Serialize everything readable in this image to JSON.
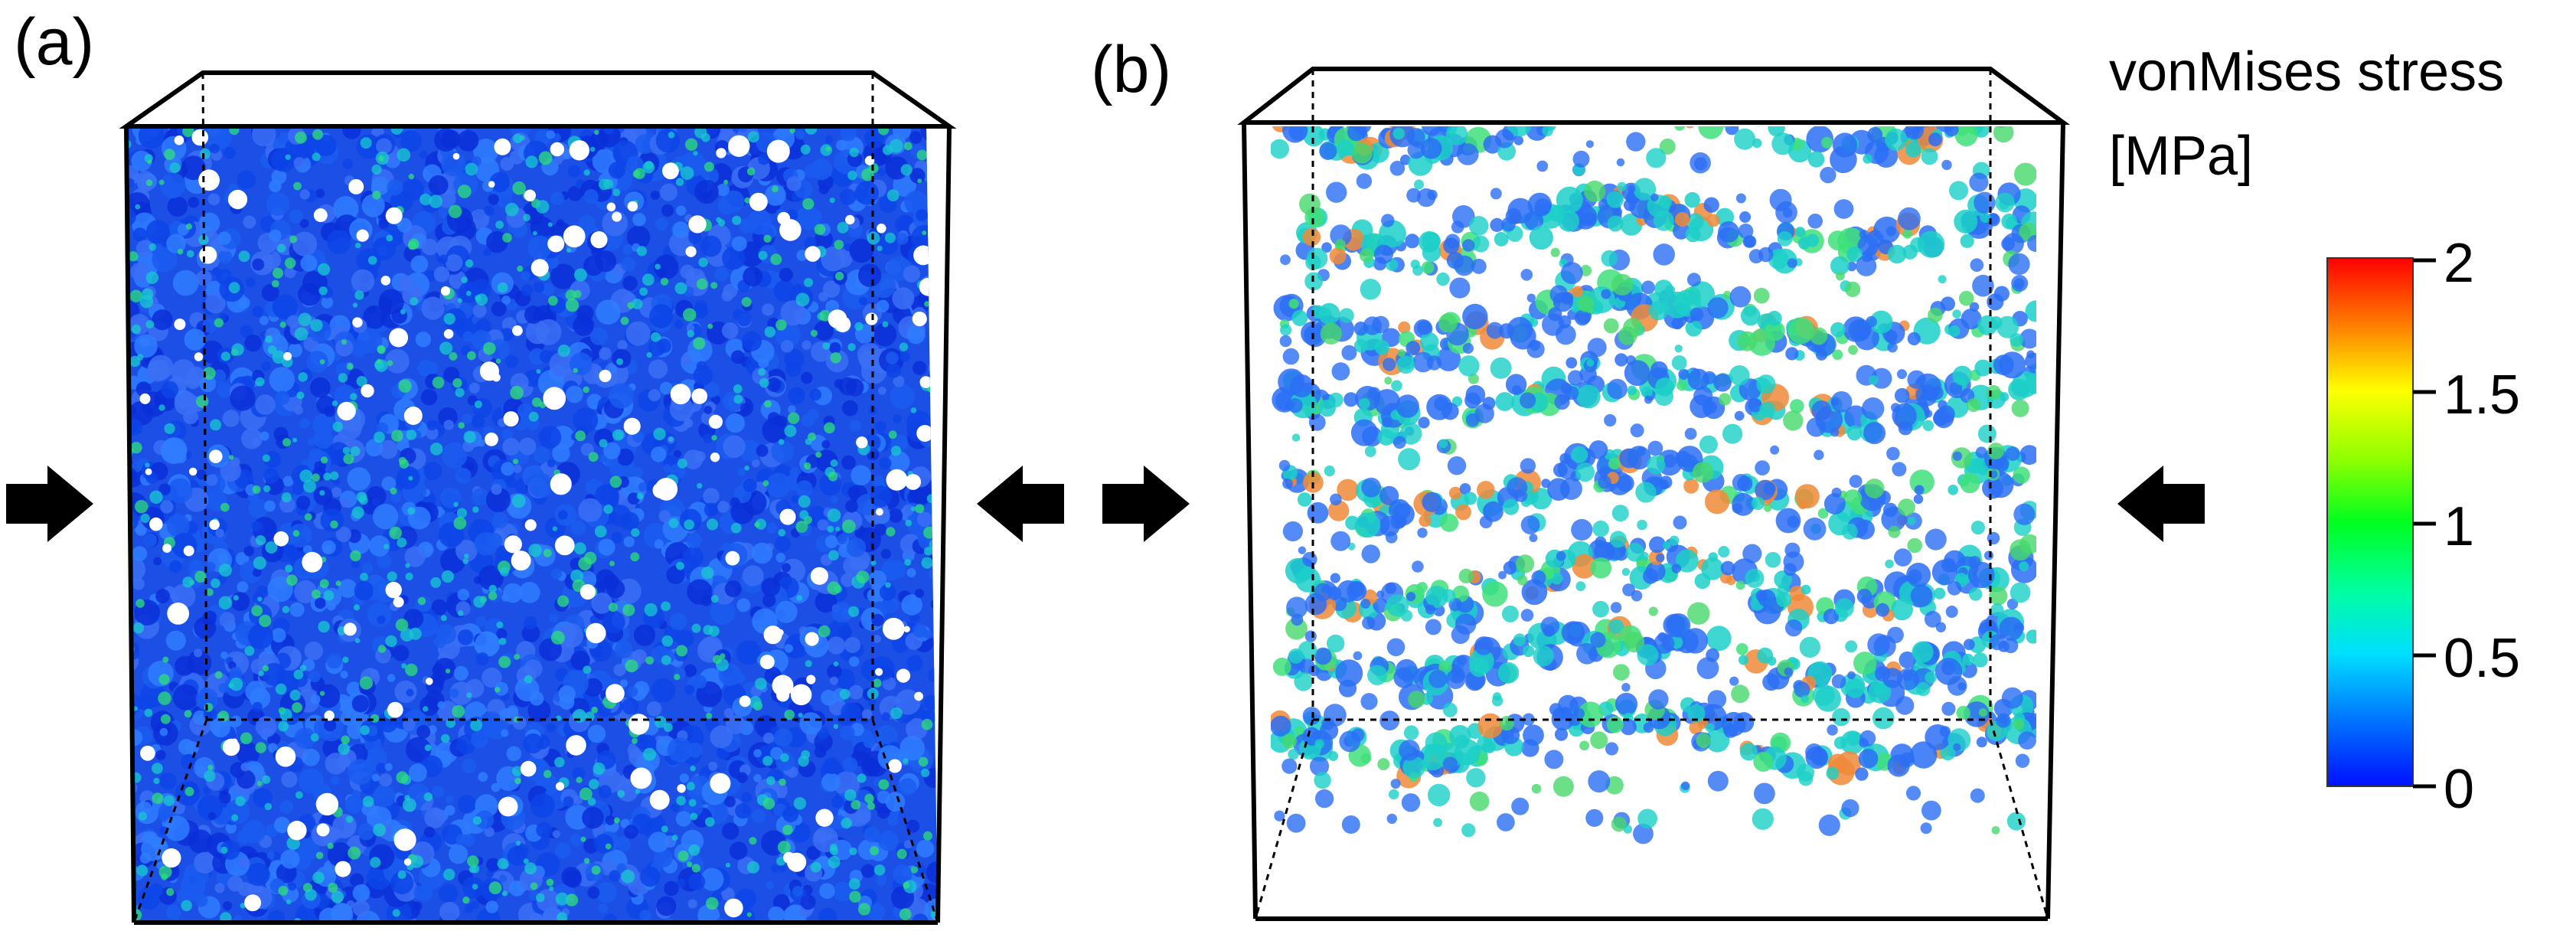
{
  "panels": [
    {
      "label": "(a)"
    },
    {
      "label": "(b)"
    }
  ],
  "colorbar": {
    "title_line1": "vonMises stress",
    "title_line2": "[MPa]",
    "min": 0,
    "max": 2,
    "ticks": [
      "2",
      "1.5",
      "1",
      "0.5",
      "0"
    ],
    "colormap": "jet"
  },
  "colors": {
    "arrow": "#000000",
    "frame": "#000000",
    "low_stress": "#1a4fe0",
    "mid_stress": "#19d0c6",
    "high_stress": "#f07a3a"
  },
  "arrows": [
    {
      "name": "arrow-a-left",
      "direction": "right"
    },
    {
      "name": "arrow-a-right",
      "direction": "left"
    },
    {
      "name": "arrow-b-left",
      "direction": "right"
    },
    {
      "name": "arrow-b-right",
      "direction": "left"
    }
  ]
}
